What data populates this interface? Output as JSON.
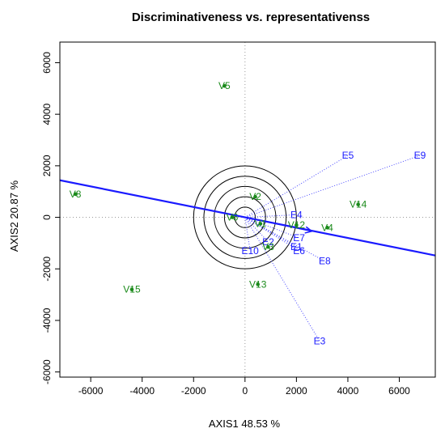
{
  "chart_data": {
    "type": "scatter",
    "title": "Discriminativeness vs. representativenss",
    "xlabel": "AXIS1 48.53 %",
    "ylabel": "AXIS2 20.87 %",
    "xlim": [
      -7200,
      7400
    ],
    "ylim": [
      -6200,
      6800
    ],
    "xticks": [
      -6000,
      -4000,
      -2000,
      0,
      2000,
      4000,
      6000
    ],
    "yticks": [
      -6000,
      -4000,
      -2000,
      0,
      2000,
      4000,
      6000
    ],
    "grid": false,
    "genotype_color": "#1a8a1a",
    "environment_color": "#1a1aff",
    "line_color": "#1a1aff",
    "circle_color": "#000000",
    "average_environment_axis": {
      "slope": -0.2,
      "average_environment": {
        "x": 2600,
        "y": -540
      }
    },
    "concentric_circle_radii": [
      400,
      800,
      1200,
      1600,
      2000
    ],
    "genotypes": [
      {
        "label": "V5",
        "x": -800,
        "y": 5100
      },
      {
        "label": "V8",
        "x": -6600,
        "y": 900
      },
      {
        "label": "V2",
        "x": 400,
        "y": 800
      },
      {
        "label": "V14",
        "x": 4400,
        "y": 500
      },
      {
        "label": "V6",
        "x": -500,
        "y": 0
      },
      {
        "label": "V1",
        "x": 600,
        "y": -250
      },
      {
        "label": "V12",
        "x": 2000,
        "y": -300
      },
      {
        "label": "V4",
        "x": 3200,
        "y": -400
      },
      {
        "label": "V3",
        "x": 900,
        "y": -1150
      },
      {
        "label": "V13",
        "x": 500,
        "y": -2600
      },
      {
        "label": "V15",
        "x": -4400,
        "y": -2800
      }
    ],
    "environments": [
      {
        "label": "E9",
        "x": 6800,
        "y": 2400
      },
      {
        "label": "E5",
        "x": 4000,
        "y": 2400
      },
      {
        "label": "E4",
        "x": 2000,
        "y": 100
      },
      {
        "label": "E7",
        "x": 2100,
        "y": -800
      },
      {
        "label": "E1",
        "x": 2000,
        "y": -1150
      },
      {
        "label": "E6",
        "x": 2100,
        "y": -1300
      },
      {
        "label": "E8",
        "x": 3100,
        "y": -1700
      },
      {
        "label": "E2",
        "x": 900,
        "y": -950
      },
      {
        "label": "E10",
        "x": 200,
        "y": -1300
      },
      {
        "label": "E3",
        "x": 2900,
        "y": -4800
      }
    ]
  }
}
